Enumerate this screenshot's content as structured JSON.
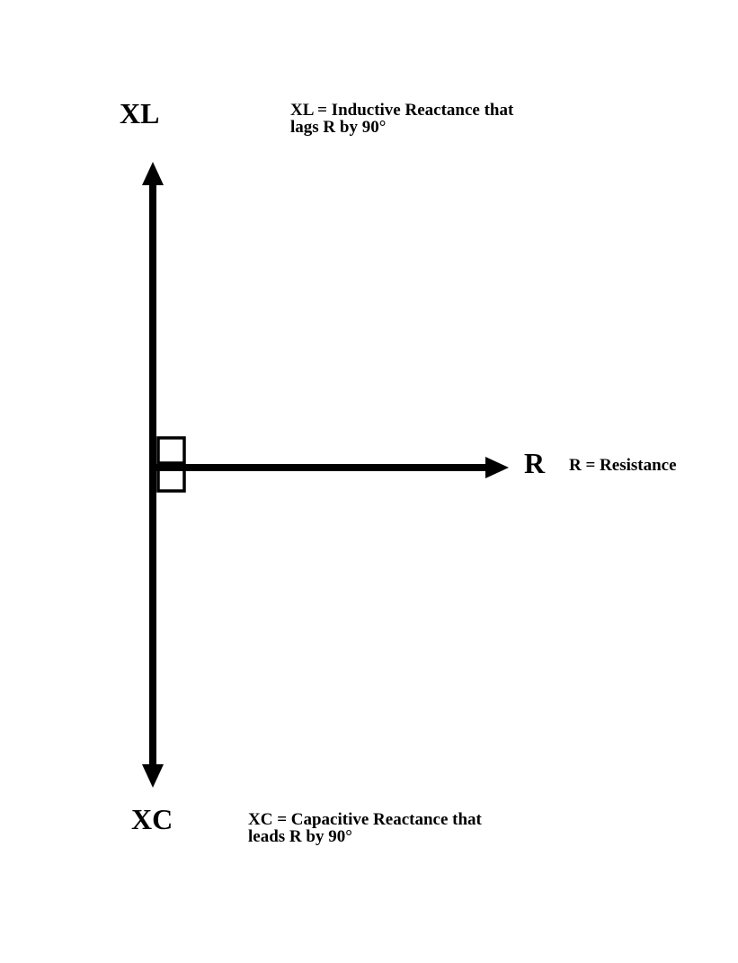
{
  "diagram": {
    "labels": {
      "xl": "XL",
      "r": "R",
      "xc": "XC"
    },
    "descriptions": {
      "xl_line1": "XL = Inductive Reactance that",
      "xl_line2": "lags R by 90°",
      "r": "R = Resistance",
      "xc_line1": "XC = Capacitive Reactance that",
      "xc_line2": "leads R by 90°"
    },
    "colors": {
      "stroke": "#000000",
      "background": "#ffffff"
    }
  }
}
